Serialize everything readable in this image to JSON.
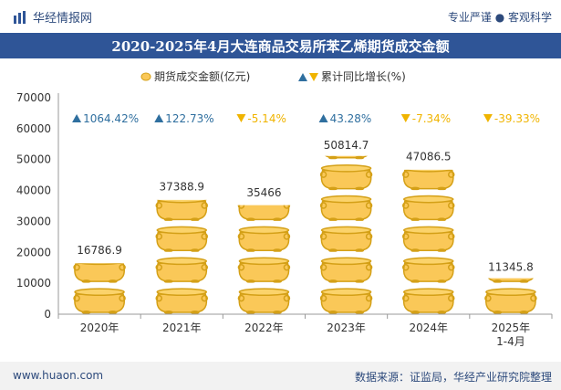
{
  "header": {
    "brand": "华经情报网",
    "tagline": "专业严谨 ● 客观科学"
  },
  "chart_data": {
    "type": "bar",
    "title": "2020-2025年4月大连商品交易所苯乙烯期货成交金额",
    "categories": [
      "2020年",
      "2021年",
      "2022年",
      "2023年",
      "2024年",
      "2025年\n1-4月"
    ],
    "series": [
      {
        "name": "期货成交金额(亿元)",
        "values": [
          16786.9,
          37388.9,
          35466,
          50814.7,
          47086.5,
          11345.8
        ]
      },
      {
        "name": "累计同比增长(%)",
        "values": [
          1064.42,
          122.73,
          -5.14,
          43.28,
          -7.34,
          -39.33
        ]
      }
    ],
    "value_labels": [
      "16786.9",
      "37388.9",
      "35466",
      "50814.7",
      "47086.5",
      "11345.8"
    ],
    "growth_labels": [
      "1064.42%",
      "122.73%",
      "-5.14%",
      "43.28%",
      "-7.34%",
      "-39.33%"
    ],
    "y_ticks": [
      "0",
      "10000",
      "20000",
      "30000",
      "40000",
      "50000",
      "60000",
      "70000"
    ],
    "ylim": [
      0,
      70000
    ],
    "legend_position": "top-center",
    "colors": {
      "coin": "#fac858",
      "coin_dark": "#d4a017",
      "up": "#2f6f9f",
      "down": "#f0b400",
      "title_bar": "#2f5597"
    }
  },
  "footer": {
    "site": "www.huaon.com",
    "source": "数据来源：证监局，华经产业研究院整理"
  }
}
